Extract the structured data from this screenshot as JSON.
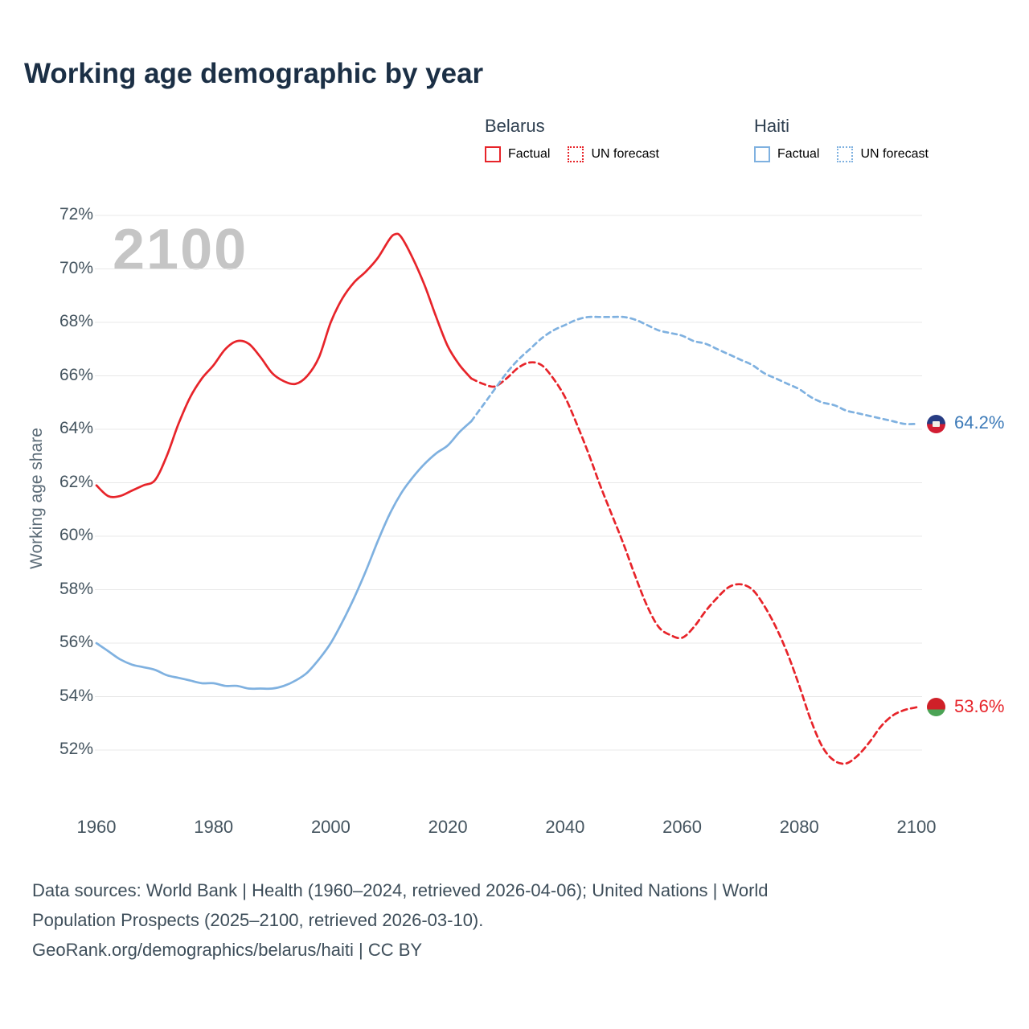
{
  "title": "Working age demographic by year",
  "watermark_year": "2100",
  "legend": {
    "groups": [
      {
        "label": "Belarus",
        "entries": [
          {
            "label": "Factual",
            "style": "solid",
            "color": "#e7242a"
          },
          {
            "label": "UN forecast",
            "style": "dotted",
            "color": "#e7242a"
          }
        ]
      },
      {
        "label": "Haiti",
        "entries": [
          {
            "label": "Factual",
            "style": "solid",
            "color": "#7fb1e0"
          },
          {
            "label": "UN forecast",
            "style": "dotted",
            "color": "#7fb1e0"
          }
        ]
      }
    ]
  },
  "end_markers": [
    {
      "country": "Haiti",
      "label": "64.2%",
      "value": 64.2,
      "label_color": "#3c7ab8",
      "flag_colors": [
        "#273c83",
        "#d21d32"
      ],
      "flag_split": 50
    },
    {
      "country": "Belarus",
      "label": "53.6%",
      "value": 53.6,
      "label_color": "#e7242a",
      "flag_colors": [
        "#cf2028",
        "#4ba355"
      ],
      "flag_split": 62
    }
  ],
  "footer": {
    "lines": [
      "Data sources: World Bank | Health (1960–2024, retrieved 2026-04-06); United Nations | World",
      "Population Prospects (2025–2100, retrieved 2026-03-10).",
      "GeoRank.org/demographics/belarus/haiti | CC BY"
    ]
  },
  "chart_data": {
    "type": "line",
    "title": "Working age demographic by year",
    "xlabel": "",
    "ylabel": "Working age share",
    "xlim": [
      1960,
      2100
    ],
    "ylim": [
      49.5,
      72.5
    ],
    "xticks": [
      1960,
      1980,
      2000,
      2020,
      2040,
      2060,
      2080,
      2100
    ],
    "yticks": [
      52,
      54,
      56,
      58,
      60,
      62,
      64,
      66,
      68,
      70,
      72
    ],
    "ytick_suffix": "%",
    "grid": "horizontal",
    "legend_position": "top-right",
    "series": [
      {
        "name": "Belarus Factual",
        "color": "#e7242a",
        "dash": "",
        "points": [
          [
            1960,
            61.9
          ],
          [
            1962,
            61.5
          ],
          [
            1964,
            61.5
          ],
          [
            1966,
            61.7
          ],
          [
            1968,
            61.9
          ],
          [
            1970,
            62.1
          ],
          [
            1972,
            63.0
          ],
          [
            1974,
            64.2
          ],
          [
            1976,
            65.2
          ],
          [
            1978,
            65.9
          ],
          [
            1980,
            66.4
          ],
          [
            1982,
            67.0
          ],
          [
            1984,
            67.3
          ],
          [
            1986,
            67.2
          ],
          [
            1988,
            66.7
          ],
          [
            1990,
            66.1
          ],
          [
            1992,
            65.8
          ],
          [
            1994,
            65.7
          ],
          [
            1996,
            66.0
          ],
          [
            1998,
            66.7
          ],
          [
            2000,
            68.0
          ],
          [
            2002,
            68.9
          ],
          [
            2004,
            69.5
          ],
          [
            2006,
            69.9
          ],
          [
            2008,
            70.4
          ],
          [
            2010,
            71.1
          ],
          [
            2011,
            71.3
          ],
          [
            2012,
            71.2
          ],
          [
            2014,
            70.4
          ],
          [
            2016,
            69.4
          ],
          [
            2018,
            68.2
          ],
          [
            2020,
            67.1
          ],
          [
            2022,
            66.4
          ],
          [
            2024,
            65.9
          ]
        ]
      },
      {
        "name": "Belarus UN forecast",
        "color": "#e7242a",
        "dash": "7 5",
        "points": [
          [
            2024,
            65.9
          ],
          [
            2026,
            65.7
          ],
          [
            2028,
            65.6
          ],
          [
            2030,
            65.9
          ],
          [
            2032,
            66.3
          ],
          [
            2034,
            66.5
          ],
          [
            2036,
            66.4
          ],
          [
            2038,
            65.9
          ],
          [
            2040,
            65.2
          ],
          [
            2042,
            64.2
          ],
          [
            2044,
            63.1
          ],
          [
            2046,
            61.9
          ],
          [
            2048,
            60.8
          ],
          [
            2050,
            59.7
          ],
          [
            2052,
            58.5
          ],
          [
            2054,
            57.4
          ],
          [
            2056,
            56.6
          ],
          [
            2058,
            56.3
          ],
          [
            2060,
            56.2
          ],
          [
            2062,
            56.6
          ],
          [
            2064,
            57.2
          ],
          [
            2066,
            57.7
          ],
          [
            2068,
            58.1
          ],
          [
            2070,
            58.2
          ],
          [
            2072,
            58.0
          ],
          [
            2074,
            57.4
          ],
          [
            2076,
            56.6
          ],
          [
            2078,
            55.6
          ],
          [
            2080,
            54.4
          ],
          [
            2082,
            53.1
          ],
          [
            2084,
            52.1
          ],
          [
            2086,
            51.6
          ],
          [
            2088,
            51.5
          ],
          [
            2090,
            51.8
          ],
          [
            2092,
            52.3
          ],
          [
            2094,
            52.9
          ],
          [
            2096,
            53.3
          ],
          [
            2098,
            53.5
          ],
          [
            2100,
            53.6
          ]
        ]
      },
      {
        "name": "Haiti Factual",
        "color": "#7fb1e0",
        "dash": "",
        "points": [
          [
            1960,
            56.0
          ],
          [
            1962,
            55.7
          ],
          [
            1964,
            55.4
          ],
          [
            1966,
            55.2
          ],
          [
            1968,
            55.1
          ],
          [
            1970,
            55.0
          ],
          [
            1972,
            54.8
          ],
          [
            1974,
            54.7
          ],
          [
            1976,
            54.6
          ],
          [
            1978,
            54.5
          ],
          [
            1980,
            54.5
          ],
          [
            1982,
            54.4
          ],
          [
            1984,
            54.4
          ],
          [
            1986,
            54.3
          ],
          [
            1988,
            54.3
          ],
          [
            1990,
            54.3
          ],
          [
            1992,
            54.4
          ],
          [
            1994,
            54.6
          ],
          [
            1996,
            54.9
          ],
          [
            1998,
            55.4
          ],
          [
            2000,
            56.0
          ],
          [
            2002,
            56.8
          ],
          [
            2004,
            57.7
          ],
          [
            2006,
            58.7
          ],
          [
            2008,
            59.8
          ],
          [
            2010,
            60.8
          ],
          [
            2012,
            61.6
          ],
          [
            2014,
            62.2
          ],
          [
            2016,
            62.7
          ],
          [
            2018,
            63.1
          ],
          [
            2020,
            63.4
          ],
          [
            2022,
            63.9
          ],
          [
            2024,
            64.3
          ]
        ]
      },
      {
        "name": "Haiti UN forecast",
        "color": "#7fb1e0",
        "dash": "6 5",
        "points": [
          [
            2024,
            64.3
          ],
          [
            2026,
            64.9
          ],
          [
            2028,
            65.5
          ],
          [
            2030,
            66.1
          ],
          [
            2032,
            66.6
          ],
          [
            2034,
            67.0
          ],
          [
            2036,
            67.4
          ],
          [
            2038,
            67.7
          ],
          [
            2040,
            67.9
          ],
          [
            2042,
            68.1
          ],
          [
            2044,
            68.2
          ],
          [
            2046,
            68.2
          ],
          [
            2048,
            68.2
          ],
          [
            2050,
            68.2
          ],
          [
            2052,
            68.1
          ],
          [
            2054,
            67.9
          ],
          [
            2056,
            67.7
          ],
          [
            2058,
            67.6
          ],
          [
            2060,
            67.5
          ],
          [
            2062,
            67.3
          ],
          [
            2064,
            67.2
          ],
          [
            2066,
            67.0
          ],
          [
            2068,
            66.8
          ],
          [
            2070,
            66.6
          ],
          [
            2072,
            66.4
          ],
          [
            2074,
            66.1
          ],
          [
            2076,
            65.9
          ],
          [
            2078,
            65.7
          ],
          [
            2080,
            65.5
          ],
          [
            2082,
            65.2
          ],
          [
            2084,
            65.0
          ],
          [
            2086,
            64.9
          ],
          [
            2088,
            64.7
          ],
          [
            2090,
            64.6
          ],
          [
            2092,
            64.5
          ],
          [
            2094,
            64.4
          ],
          [
            2096,
            64.3
          ],
          [
            2098,
            64.2
          ],
          [
            2100,
            64.2
          ]
        ]
      }
    ]
  }
}
